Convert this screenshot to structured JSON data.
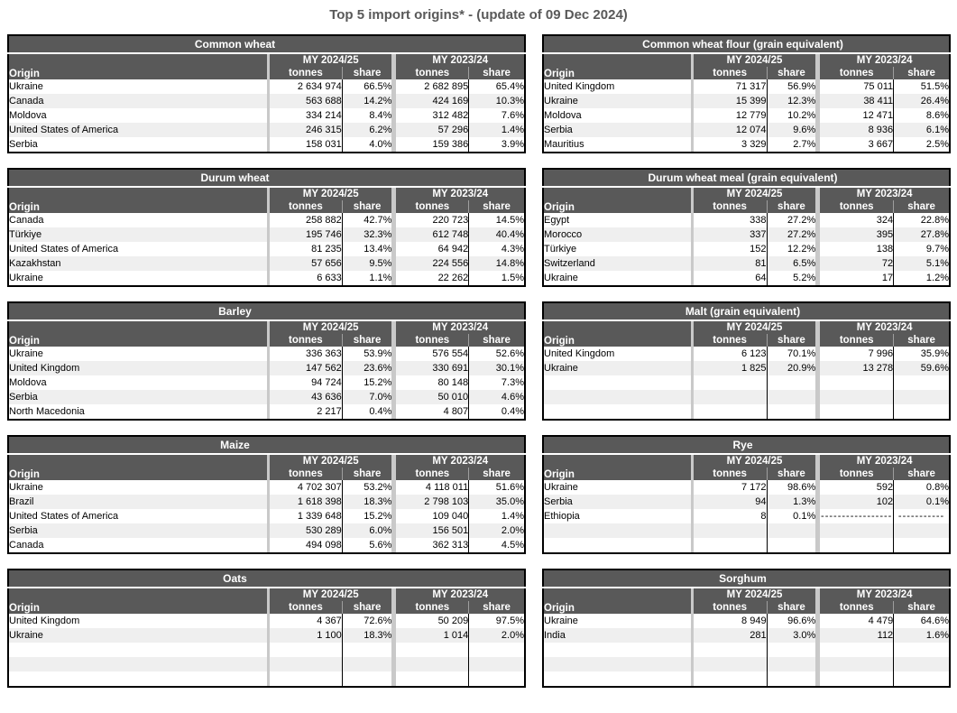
{
  "page_title": "Top 5 import origins* - (update of 09 Dec 2024)",
  "columns": {
    "origin": "Origin",
    "my_current": "MY 2024/25",
    "my_previous": "MY 2023/24",
    "tonnes": "tonnes",
    "share": "share"
  },
  "tables": [
    {
      "title": "Common wheat",
      "column": "left",
      "rows": [
        [
          "Ukraine",
          "2 634 974",
          "66.5%",
          "2 682 895",
          "65.4%"
        ],
        [
          "Canada",
          "563 688",
          "14.2%",
          "424 169",
          "10.3%"
        ],
        [
          "Moldova",
          "334 214",
          "8.4%",
          "312 482",
          "7.6%"
        ],
        [
          "United States of America",
          "246 315",
          "6.2%",
          "57 296",
          "1.4%"
        ],
        [
          "Serbia",
          "158 031",
          "4.0%",
          "159 386",
          "3.9%"
        ]
      ]
    },
    {
      "title": "Common wheat flour (grain equivalent)",
      "column": "right",
      "rows": [
        [
          "United Kingdom",
          "71 317",
          "56.9%",
          "75 011",
          "51.5%"
        ],
        [
          "Ukraine",
          "15 399",
          "12.3%",
          "38 411",
          "26.4%"
        ],
        [
          "Moldova",
          "12 779",
          "10.2%",
          "12 471",
          "8.6%"
        ],
        [
          "Serbia",
          "12 074",
          "9.6%",
          "8 936",
          "6.1%"
        ],
        [
          "Mauritius",
          "3 329",
          "2.7%",
          "3 667",
          "2.5%"
        ]
      ]
    },
    {
      "title": "Durum wheat",
      "column": "left",
      "rows": [
        [
          "Canada",
          "258 882",
          "42.7%",
          "220 723",
          "14.5%"
        ],
        [
          "Türkiye",
          "195 746",
          "32.3%",
          "612 748",
          "40.4%"
        ],
        [
          "United States of America",
          "81 235",
          "13.4%",
          "64 942",
          "4.3%"
        ],
        [
          "Kazakhstan",
          "57 656",
          "9.5%",
          "224 556",
          "14.8%"
        ],
        [
          "Ukraine",
          "6 633",
          "1.1%",
          "22 262",
          "1.5%"
        ]
      ]
    },
    {
      "title": "Durum wheat meal (grain equivalent)",
      "column": "right",
      "rows": [
        [
          "Egypt",
          "338",
          "27.2%",
          "324",
          "22.8%"
        ],
        [
          "Morocco",
          "337",
          "27.2%",
          "395",
          "27.8%"
        ],
        [
          "Türkiye",
          "152",
          "12.2%",
          "138",
          "9.7%"
        ],
        [
          "Switzerland",
          "81",
          "6.5%",
          "72",
          "5.1%"
        ],
        [
          "Ukraine",
          "64",
          "5.2%",
          "17",
          "1.2%"
        ]
      ]
    },
    {
      "title": "Barley",
      "column": "left",
      "rows": [
        [
          "Ukraine",
          "336 363",
          "53.9%",
          "576 554",
          "52.6%"
        ],
        [
          "United Kingdom",
          "147 562",
          "23.6%",
          "330 691",
          "30.1%"
        ],
        [
          "Moldova",
          "94 724",
          "15.2%",
          "80 148",
          "7.3%"
        ],
        [
          "Serbia",
          "43 636",
          "7.0%",
          "50 010",
          "4.6%"
        ],
        [
          "North Macedonia",
          "2 217",
          "0.4%",
          "4 807",
          "0.4%"
        ]
      ]
    },
    {
      "title": "Malt (grain equivalent)",
      "column": "right",
      "rows": [
        [
          "United Kingdom",
          "6 123",
          "70.1%",
          "7 996",
          "35.9%"
        ],
        [
          "Ukraine",
          "1 825",
          "20.9%",
          "13 278",
          "59.6%"
        ],
        [
          "",
          "",
          "",
          "",
          ""
        ],
        [
          "",
          "",
          "",
          "",
          ""
        ],
        [
          "",
          "",
          "",
          "",
          ""
        ]
      ]
    },
    {
      "title": "Maize",
      "column": "left",
      "rows": [
        [
          "Ukraine",
          "4 702 307",
          "53.2%",
          "4 118 011",
          "51.6%"
        ],
        [
          "Brazil",
          "1 618 398",
          "18.3%",
          "2 798 103",
          "35.0%"
        ],
        [
          "United States of America",
          "1 339 648",
          "15.2%",
          "109 040",
          "1.4%"
        ],
        [
          "Serbia",
          "530 289",
          "6.0%",
          "156 501",
          "2.0%"
        ],
        [
          "Canada",
          "494 098",
          "5.6%",
          "362 313",
          "4.5%"
        ]
      ]
    },
    {
      "title": "Rye",
      "column": "right",
      "rows": [
        [
          "Ukraine",
          "7 172",
          "98.6%",
          "592",
          "0.8%"
        ],
        [
          "Serbia",
          "94",
          "1.3%",
          "102",
          "0.1%"
        ],
        [
          "Ethiopia",
          "8",
          "0.1%",
          "-----------------",
          "-----------"
        ],
        [
          "",
          "",
          "",
          "",
          ""
        ],
        [
          "",
          "",
          "",
          "",
          ""
        ]
      ]
    },
    {
      "title": "Oats",
      "column": "left",
      "rows": [
        [
          "United Kingdom",
          "4 367",
          "72.6%",
          "50 209",
          "97.5%"
        ],
        [
          "Ukraine",
          "1 100",
          "18.3%",
          "1 014",
          "2.0%"
        ],
        [
          "",
          "",
          "",
          "",
          ""
        ],
        [
          "",
          "",
          "",
          "",
          ""
        ],
        [
          "",
          "",
          "",
          "",
          ""
        ]
      ]
    },
    {
      "title": "Sorghum",
      "column": "right",
      "rows": [
        [
          "Ukraine",
          "8 949",
          "96.6%",
          "4 479",
          "64.6%"
        ],
        [
          "India",
          "281",
          "3.0%",
          "112",
          "1.6%"
        ],
        [
          "",
          "",
          "",
          "",
          ""
        ],
        [
          "",
          "",
          "",
          "",
          ""
        ],
        [
          "",
          "",
          "",
          "",
          ""
        ]
      ]
    }
  ]
}
